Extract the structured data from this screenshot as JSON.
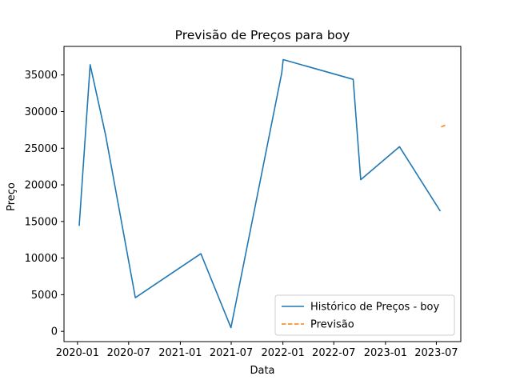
{
  "chart_data": {
    "type": "line",
    "title": "Previsão de Preços para boy",
    "xlabel": "Data",
    "ylabel": "Preço",
    "x_range": [
      "2019-11-14",
      "2023-09-26"
    ],
    "ylim": [
      -1400,
      38900
    ],
    "x_ticks": [
      {
        "date": "2020-01-01",
        "label": "2020-01"
      },
      {
        "date": "2020-07-01",
        "label": "2020-07"
      },
      {
        "date": "2021-01-01",
        "label": "2021-01"
      },
      {
        "date": "2021-07-01",
        "label": "2021-07"
      },
      {
        "date": "2022-01-01",
        "label": "2022-01"
      },
      {
        "date": "2022-07-01",
        "label": "2022-07"
      },
      {
        "date": "2023-01-01",
        "label": "2023-01"
      },
      {
        "date": "2023-07-01",
        "label": "2023-07"
      }
    ],
    "y_ticks": [
      0,
      5000,
      10000,
      15000,
      20000,
      25000,
      30000,
      35000
    ],
    "legend_position": "lower-right",
    "grid": false,
    "series": [
      {
        "name": "Histórico de Preços - boy",
        "color": "#1f77b4",
        "style": "solid",
        "points": [
          {
            "x": "2020-01-07",
            "y": 14400
          },
          {
            "x": "2020-02-15",
            "y": 36400
          },
          {
            "x": "2020-04-10",
            "y": 26800
          },
          {
            "x": "2020-07-25",
            "y": 4600
          },
          {
            "x": "2021-03-15",
            "y": 10600
          },
          {
            "x": "2021-06-30",
            "y": 500
          },
          {
            "x": "2021-12-28",
            "y": 35300
          },
          {
            "x": "2022-01-02",
            "y": 37100
          },
          {
            "x": "2022-09-08",
            "y": 34400
          },
          {
            "x": "2022-10-05",
            "y": 20700
          },
          {
            "x": "2023-02-20",
            "y": 25200
          },
          {
            "x": "2023-07-15",
            "y": 16400
          }
        ]
      },
      {
        "name": "Previsão",
        "color": "#ff7f0e",
        "style": "dashed",
        "points": [
          {
            "x": "2023-07-18",
            "y": 27900
          },
          {
            "x": "2023-08-05",
            "y": 28200
          }
        ]
      }
    ]
  }
}
